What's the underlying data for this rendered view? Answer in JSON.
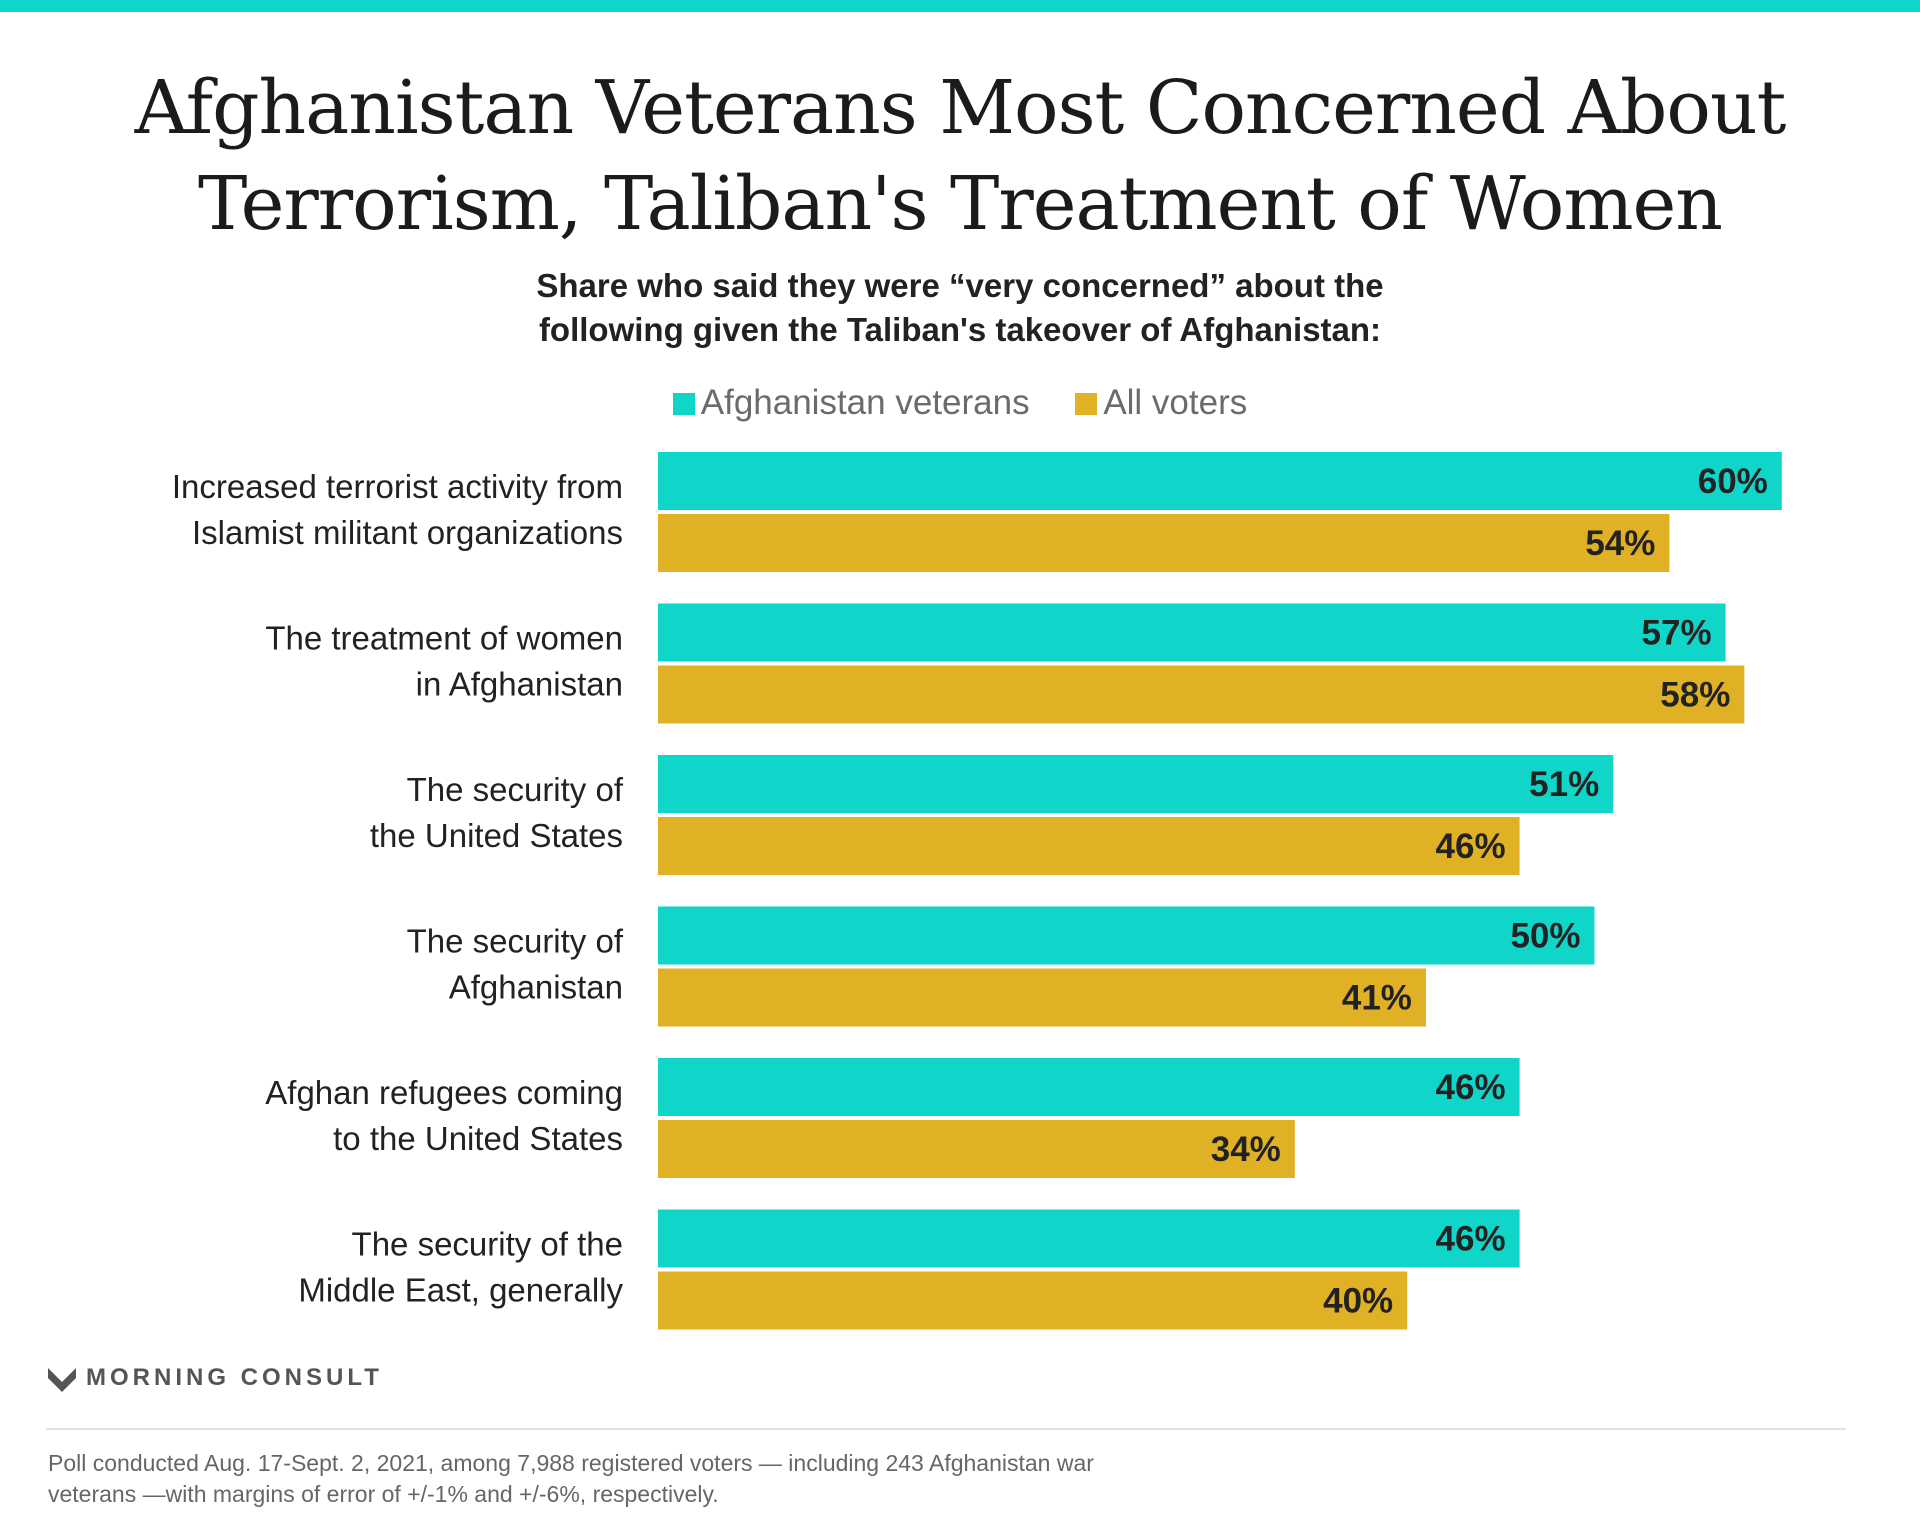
{
  "title_line1": "Afghanistan Veterans Most Concerned About",
  "title_line2": "Terrorism, Taliban's Treatment of Women",
  "subtitle_line1": "Share who said they were “very concerned” about the",
  "subtitle_line2": "following given the Taliban's takeover of Afghanistan:",
  "colors": {
    "veterans": "#10d5c9",
    "all_voters": "#e0b124",
    "accent_bar": "#10d5c9"
  },
  "brand": "MORNING CONSULT",
  "footnote_line1": "Poll conducted Aug. 17-Sept. 2, 2021, among 7,988 registered voters — including 243 Afghanistan war",
  "footnote_line2": "veterans —with margins of error of +/-1% and +/-6%, respectively.",
  "chart_data": {
    "type": "bar",
    "orientation": "horizontal",
    "categories": [
      [
        "Increased terrorist activity from",
        "Islamist militant organizations"
      ],
      [
        "The treatment of women",
        "in Afghanistan"
      ],
      [
        "The security of",
        "the United States"
      ],
      [
        "The security of",
        "Afghanistan"
      ],
      [
        "Afghan refugees coming",
        "to the United States"
      ],
      [
        "The security of the",
        "Middle East, generally"
      ]
    ],
    "series": [
      {
        "name": "Afghanistan veterans",
        "color": "#10d5c9",
        "values": [
          60,
          57,
          51,
          50,
          46,
          46
        ]
      },
      {
        "name": "All voters",
        "color": "#e0b124",
        "values": [
          54,
          58,
          46,
          41,
          34,
          40
        ]
      }
    ],
    "value_suffix": "%",
    "xlim": [
      0,
      100
    ],
    "legend_position": "top",
    "grid": false
  }
}
